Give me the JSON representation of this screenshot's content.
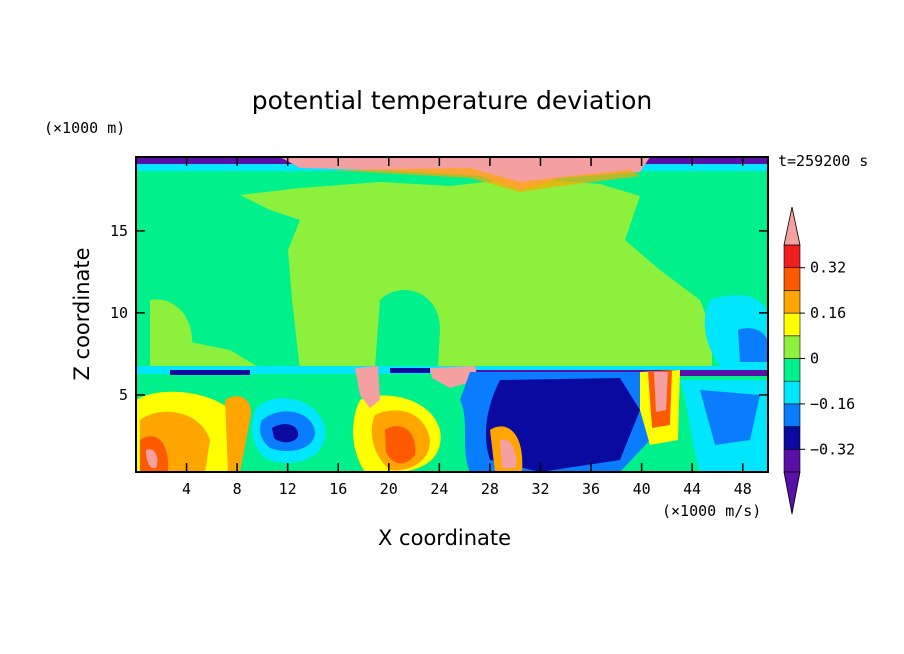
{
  "chart_data": {
    "type": "heatmap",
    "title": "potential temperature deviation",
    "xlabel": "X coordinate",
    "ylabel": "Z coordinate",
    "x_unit": "(×1000 m/s)",
    "z_unit": "(×1000 m)",
    "time_label": "t=259200 s",
    "xlim": [
      0,
      50
    ],
    "ylim": [
      0.3,
      19.5
    ],
    "x_ticks": [
      4,
      8,
      12,
      16,
      20,
      24,
      28,
      32,
      36,
      40,
      44,
      48
    ],
    "y_ticks": [
      5,
      10,
      15
    ],
    "colorbar": {
      "levels": [
        -0.4,
        -0.32,
        -0.24,
        -0.16,
        -0.08,
        0,
        0.08,
        0.16,
        0.24,
        0.32,
        0.4
      ],
      "tick_labels": [
        "0.32",
        "0.16",
        "0",
        "−0.16",
        "−0.32"
      ],
      "tick_values": [
        0.32,
        0.16,
        0,
        -0.16,
        -0.32
      ],
      "colors_low_to_high": [
        "#5a0fa8",
        "#0a0aa0",
        "#0a7dff",
        "#00e6ff",
        "#00f08c",
        "#8cf03c",
        "#ffff00",
        "#ffa500",
        "#ff5a00",
        "#f01e1e"
      ],
      "under_color": "#5a0fa8",
      "over_color": "#f5a0a0"
    },
    "field_description_regions": [
      {
        "region": "upper layer z 7-19",
        "value": 0.02
      },
      {
        "region": "lower layer z 0-7",
        "value_range": [
          -0.4,
          0.4
        ]
      }
    ]
  }
}
